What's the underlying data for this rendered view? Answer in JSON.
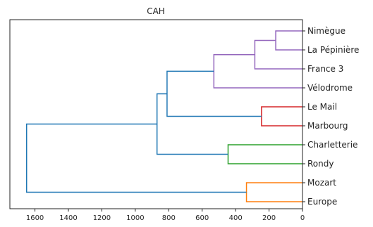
{
  "chart_data": {
    "type": "dendrogram",
    "title": "CAH",
    "orientation": "left",
    "xlim": [
      1750,
      0
    ],
    "x_ticks": [
      1600,
      1400,
      1200,
      1000,
      800,
      600,
      400,
      200,
      0
    ],
    "leaves": [
      "Nimègue",
      "La Pépinière",
      "France 3",
      "Vélodrome",
      "Le Mail",
      "Marbourg",
      "Charletterie",
      "Rondy",
      "Mozart",
      "Europe"
    ],
    "links": [
      {
        "id": "n1",
        "children": [
          "Nimègue",
          "La Pépinière"
        ],
        "height": 160,
        "color": "#9467bd"
      },
      {
        "id": "n2",
        "children": [
          "n1",
          "France 3"
        ],
        "height": 285,
        "color": "#9467bd"
      },
      {
        "id": "n3",
        "children": [
          "n2",
          "Vélodrome"
        ],
        "height": 530,
        "color": "#9467bd"
      },
      {
        "id": "n4",
        "children": [
          "Le Mail",
          "Marbourg"
        ],
        "height": 245,
        "color": "#d62728"
      },
      {
        "id": "n5",
        "children": [
          "n3",
          "n4"
        ],
        "height": 810,
        "color": "#1f77b4"
      },
      {
        "id": "n6",
        "children": [
          "Charletterie",
          "Rondy"
        ],
        "height": 445,
        "color": "#2ca02c"
      },
      {
        "id": "n7",
        "children": [
          "n5",
          "n6"
        ],
        "height": 870,
        "color": "#1f77b4"
      },
      {
        "id": "n8",
        "children": [
          "Mozart",
          "Europe"
        ],
        "height": 335,
        "color": "#ff7f0e"
      },
      {
        "id": "n9",
        "children": [
          "n7",
          "n8"
        ],
        "height": 1650,
        "color": "#1f77b4"
      }
    ]
  }
}
